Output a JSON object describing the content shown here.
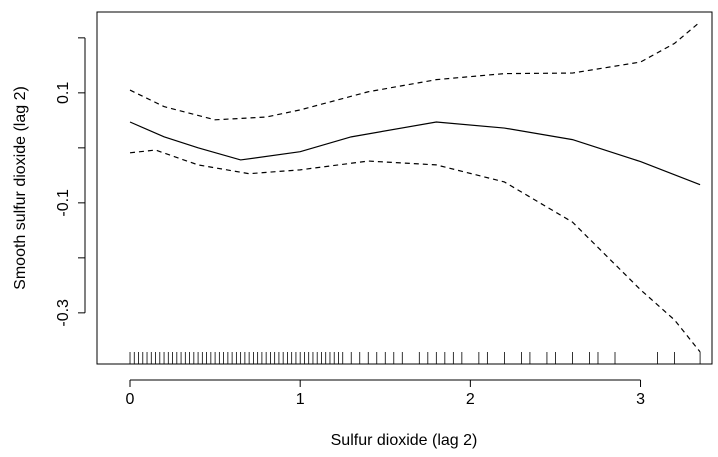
{
  "chart_data": {
    "type": "line",
    "xlabel": "Sulfur dioxide (lag 2)",
    "ylabel": "Smooth sulfur dioxide (lag 2)",
    "xlim": [
      -0.194,
      3.42
    ],
    "ylim": [
      -0.393,
      0.247
    ],
    "xticks": [
      0,
      1,
      2,
      3
    ],
    "yticks": [
      0.1,
      -0.1,
      -0.3
    ],
    "yticks_unlabeled": [
      0.2,
      0,
      -0.2
    ],
    "series": [
      {
        "color": "#000000",
        "dash": false,
        "x": [
          0,
          0.2,
          0.4,
          0.65,
          1,
          1.3,
          1.8,
          2.2,
          2.6,
          3,
          3.35
        ],
        "values": [
          0.047,
          0.02,
          0.0,
          -0.022,
          -0.007,
          0.02,
          0.047,
          0.036,
          0.015,
          -0.025,
          -0.067
        ]
      },
      {
        "color": "#000000",
        "dash": true,
        "x": [
          0,
          0.2,
          0.5,
          0.8,
          1,
          1.4,
          1.8,
          2.2,
          2.6,
          3,
          3.2,
          3.35
        ],
        "values": [
          0.105,
          0.075,
          0.051,
          0.056,
          0.069,
          0.102,
          0.124,
          0.135,
          0.136,
          0.156,
          0.19,
          0.229
        ]
      },
      {
        "color": "#000000",
        "dash": true,
        "x": [
          0,
          0.15,
          0.4,
          0.7,
          1,
          1.4,
          1.8,
          2.2,
          2.6,
          3,
          3.2,
          3.35
        ],
        "values": [
          -0.009,
          -0.004,
          -0.031,
          -0.047,
          -0.04,
          -0.024,
          -0.031,
          -0.062,
          -0.135,
          -0.258,
          -0.313,
          -0.371
        ]
      }
    ],
    "rug": [
      0,
      0.025,
      0.05,
      0.075,
      0.1,
      0.125,
      0.15,
      0.175,
      0.2,
      0.225,
      0.25,
      0.275,
      0.3,
      0.325,
      0.35,
      0.375,
      0.4,
      0.425,
      0.45,
      0.475,
      0.5,
      0.525,
      0.55,
      0.575,
      0.6,
      0.625,
      0.65,
      0.675,
      0.7,
      0.725,
      0.75,
      0.775,
      0.8,
      0.825,
      0.85,
      0.875,
      0.9,
      0.925,
      0.95,
      0.975,
      1,
      1.025,
      1.05,
      1.075,
      1.1,
      1.125,
      1.15,
      1.175,
      1.2,
      1.225,
      1.25,
      1.3,
      1.35,
      1.4,
      1.45,
      1.5,
      1.55,
      1.6,
      1.7,
      1.75,
      1.8,
      1.85,
      1.9,
      1.95,
      2.05,
      2.1,
      2.2,
      2.3,
      2.35,
      2.45,
      2.5,
      2.6,
      2.7,
      2.75,
      2.85,
      3.1,
      3.2,
      3.35
    ]
  }
}
